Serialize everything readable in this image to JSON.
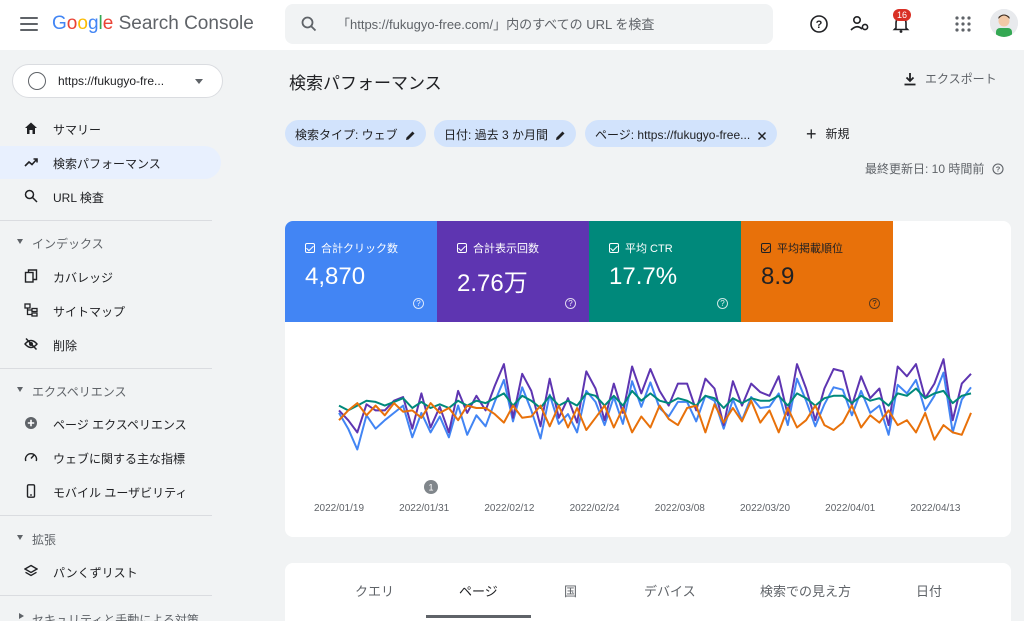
{
  "header": {
    "logo_google": "Google",
    "logo_product": "Search Console",
    "search_placeholder": "「https://fukugyo-free.com/」内のすべての URL を検査",
    "notification_count": "16",
    "icons": [
      "menu-icon",
      "search-icon",
      "help-icon",
      "manage-users-icon",
      "bell-icon",
      "apps-grid-icon",
      "avatar"
    ]
  },
  "sidebar": {
    "property": "https://fukugyo-fre...",
    "items": [
      {
        "label": "サマリー",
        "icon": "home-icon"
      },
      {
        "label": "検索パフォーマンス",
        "icon": "trending-up-icon",
        "active": true
      },
      {
        "label": "URL 検査",
        "icon": "search-icon"
      }
    ],
    "sections": [
      {
        "label": "インデックス",
        "items": [
          {
            "label": "カバレッジ",
            "icon": "coverage-icon"
          },
          {
            "label": "サイトマップ",
            "icon": "sitemap-icon"
          },
          {
            "label": "削除",
            "icon": "eye-off-icon"
          }
        ]
      },
      {
        "label": "エクスペリエンス",
        "items": [
          {
            "label": "ページ エクスペリエンス",
            "icon": "plus-circle-icon"
          },
          {
            "label": "ウェブに関する主な指標",
            "icon": "speed-icon"
          },
          {
            "label": "モバイル ユーザビリティ",
            "icon": "phone-icon"
          }
        ]
      },
      {
        "label": "拡張",
        "items": [
          {
            "label": "パンくずリスト",
            "icon": "layers-icon"
          }
        ]
      },
      {
        "label": "セキュリティと手動による対策"
      }
    ]
  },
  "main": {
    "title": "検索パフォーマンス",
    "export_label": "エクスポート",
    "filters": [
      {
        "label": "検索タイプ: ウェブ",
        "action": "edit"
      },
      {
        "label": "日付: 過去 3 か月間",
        "action": "edit"
      },
      {
        "label": "ページ: https://fukugyo-free...",
        "action": "close"
      }
    ],
    "add_new_label": "新規",
    "updated": "最終更新日: 10 時間前",
    "metrics": [
      {
        "label": "合計クリック数",
        "value": "4,870",
        "color": "#4285f4"
      },
      {
        "label": "合計表示回数",
        "value": "2.76万",
        "color": "#5e35b1"
      },
      {
        "label": "平均 CTR",
        "value": "17.7%",
        "color": "#00897b"
      },
      {
        "label": "平均掲載順位",
        "value": "8.9",
        "color": "#e8710a"
      }
    ],
    "annotation_marker": "1",
    "tabs": [
      {
        "label": "クエリ"
      },
      {
        "label": "ページ",
        "active": true
      },
      {
        "label": "国"
      },
      {
        "label": "デバイス"
      },
      {
        "label": "検索での見え方"
      },
      {
        "label": "日付"
      }
    ]
  },
  "chart_data": {
    "type": "line",
    "x_tick_labels": [
      "2022/01/19",
      "2022/01/31",
      "2022/02/12",
      "2022/02/24",
      "2022/03/08",
      "2022/03/20",
      "2022/04/01",
      "2022/04/13"
    ],
    "y_axis_shown": false,
    "series": [
      {
        "name": "合計クリック数",
        "color": "#4285f4",
        "values": [
          46,
          33,
          16,
          44,
          33,
          40,
          46,
          52,
          26,
          46,
          30,
          43,
          26,
          52,
          28,
          44,
          35,
          55,
          73,
          39,
          67,
          48,
          25,
          61,
          37,
          45,
          30,
          64,
          55,
          36,
          59,
          37,
          72,
          51,
          71,
          50,
          43,
          55,
          55,
          39,
          60,
          56,
          33,
          57,
          40,
          59,
          50,
          51,
          62,
          36,
          74,
          56,
          35,
          53,
          67,
          65,
          44,
          64,
          46,
          52,
          28,
          69,
          62,
          73,
          48,
          60,
          79,
          30,
          57,
          67
        ]
      },
      {
        "name": "合計表示回数",
        "color": "#5e35b1",
        "values": [
          48,
          40,
          30,
          53,
          48,
          48,
          56,
          59,
          33,
          62,
          34,
          51,
          30,
          64,
          46,
          60,
          48,
          68,
          86,
          42,
          78,
          64,
          35,
          74,
          42,
          58,
          38,
          80,
          66,
          40,
          70,
          46,
          84,
          62,
          82,
          64,
          52,
          70,
          70,
          48,
          74,
          66,
          36,
          72,
          52,
          70,
          63,
          60,
          76,
          44,
          86,
          66,
          40,
          66,
          82,
          80,
          52,
          76,
          58,
          66,
          36,
          84,
          76,
          86,
          58,
          70,
          90,
          40,
          70,
          78
        ]
      },
      {
        "name": "平均 CTR",
        "color": "#00897b",
        "values": [
          52,
          48,
          52,
          56,
          55,
          52,
          55,
          58,
          50,
          55,
          50,
          53,
          50,
          56,
          52,
          56,
          54,
          58,
          62,
          52,
          60,
          56,
          50,
          60,
          52,
          56,
          52,
          62,
          60,
          52,
          60,
          52,
          64,
          56,
          62,
          56,
          54,
          58,
          56,
          52,
          60,
          58,
          50,
          58,
          54,
          58,
          56,
          56,
          60,
          52,
          62,
          58,
          52,
          58,
          60,
          60,
          54,
          60,
          56,
          58,
          52,
          62,
          60,
          66,
          58,
          62,
          64,
          54,
          60,
          62
        ]
      },
      {
        "name": "平均掲載順位",
        "color": "#e8710a",
        "values": [
          40,
          48,
          54,
          44,
          52,
          44,
          54,
          47,
          48,
          42,
          54,
          46,
          50,
          40,
          52,
          50,
          50,
          45,
          38,
          52,
          42,
          43,
          52,
          35,
          52,
          34,
          50,
          32,
          42,
          52,
          34,
          50,
          30,
          43,
          34,
          52,
          41,
          36,
          50,
          52,
          30,
          53,
          38,
          50,
          39,
          56,
          38,
          48,
          30,
          50,
          34,
          40,
          52,
          36,
          32,
          38,
          52,
          34,
          44,
          38,
          48,
          36,
          40,
          30,
          46,
          24,
          36,
          30,
          28,
          46
        ]
      }
    ]
  }
}
